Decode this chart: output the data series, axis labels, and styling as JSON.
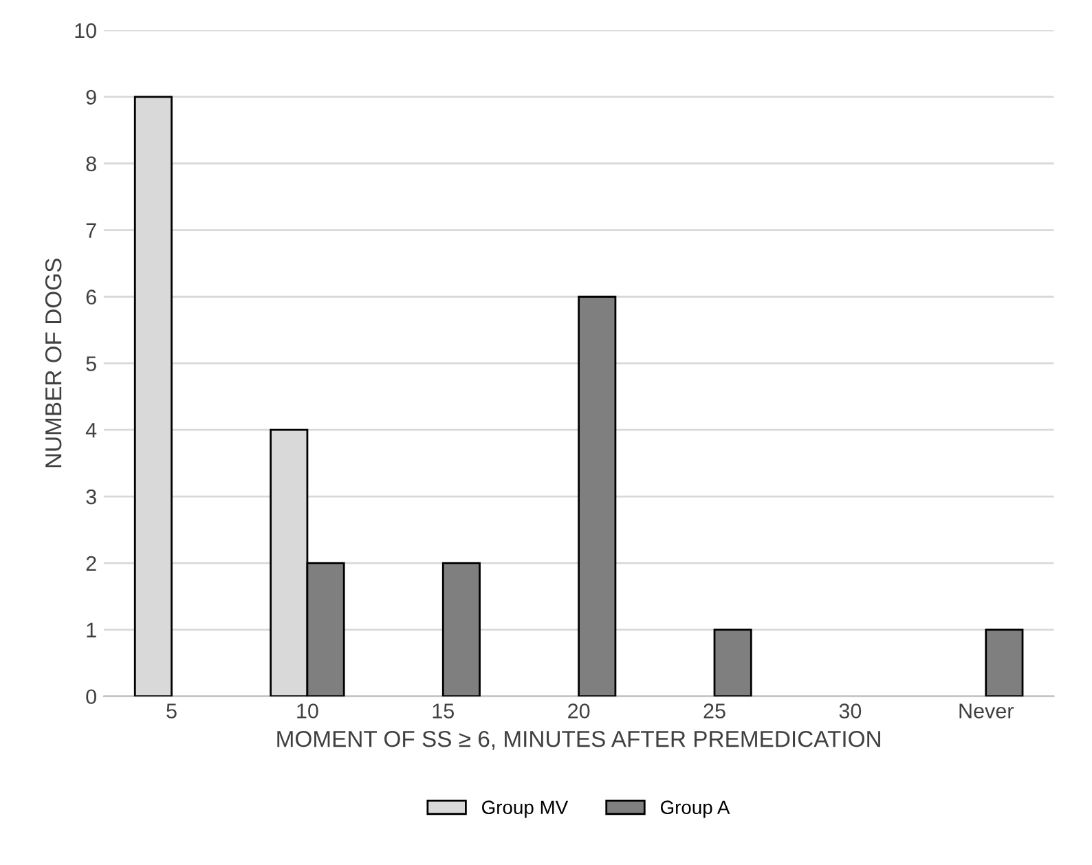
{
  "chart_data": {
    "type": "bar",
    "xlabel": "MOMENT OF SS ≥ 6, MINUTES AFTER PREMEDICATION",
    "ylabel": "NUMBER OF DOGS",
    "categories": [
      "5",
      "10",
      "15",
      "20",
      "25",
      "30",
      "Never"
    ],
    "series": [
      {
        "name": "Group MV",
        "color": "#d9d9d9",
        "values": [
          9,
          4,
          null,
          null,
          null,
          null,
          null
        ]
      },
      {
        "name": "Group A",
        "color": "#7f7f7f",
        "values": [
          null,
          2,
          2,
          6,
          1,
          null,
          1
        ]
      }
    ],
    "ylim": [
      0,
      10
    ],
    "yticks": [
      0,
      1,
      2,
      3,
      4,
      5,
      6,
      7,
      8,
      9,
      10
    ],
    "grid": "y",
    "legend": "bottom"
  }
}
